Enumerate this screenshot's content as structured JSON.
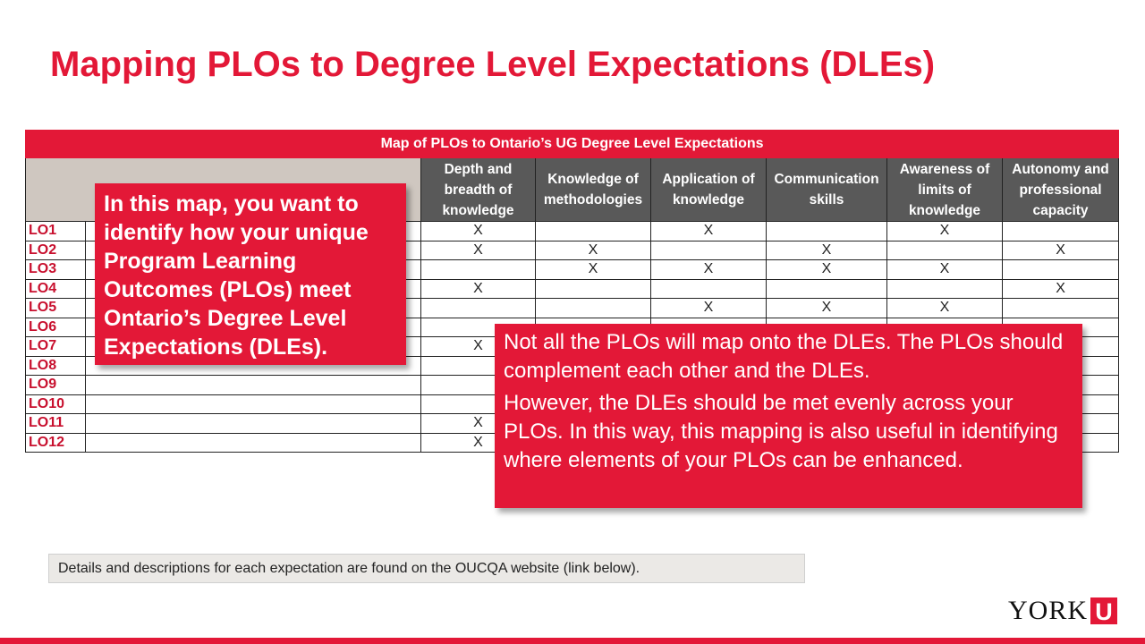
{
  "title": "Mapping PLOs to Degree Level Expectations (DLEs)",
  "table": {
    "banner": "Map of PLOs to Ontario’s UG Degree Level Expectations",
    "columns": [
      [
        "Depth and",
        "breadth of",
        "knowledge"
      ],
      [
        "Knowledge of",
        "methodologies"
      ],
      [
        "Application of",
        "knowledge"
      ],
      [
        "Communication",
        "skills"
      ],
      [
        "Awareness of",
        "limits of",
        "knowledge"
      ],
      [
        "Autonomy and",
        "professional",
        "capacity"
      ]
    ],
    "rows": [
      {
        "label": "LO1",
        "cells": [
          "X",
          "",
          "X",
          "",
          "X",
          ""
        ]
      },
      {
        "label": "LO2",
        "cells": [
          "X",
          "X",
          "",
          "X",
          "",
          "X"
        ]
      },
      {
        "label": "LO3",
        "cells": [
          "",
          "X",
          "X",
          "X",
          "X",
          ""
        ]
      },
      {
        "label": "LO4",
        "cells": [
          "X",
          "",
          "",
          "",
          "",
          "X"
        ]
      },
      {
        "label": "LO5",
        "cells": [
          "",
          "",
          "X",
          "X",
          "X",
          ""
        ]
      },
      {
        "label": "LO6",
        "cells": [
          "",
          "",
          "",
          "",
          "",
          ""
        ]
      },
      {
        "label": "LO7",
        "cells": [
          "X",
          "",
          "",
          "",
          "",
          ""
        ]
      },
      {
        "label": "LO8",
        "cells": [
          "",
          "",
          "",
          "",
          "",
          ""
        ]
      },
      {
        "label": "LO9",
        "cells": [
          "",
          "",
          "",
          "",
          "",
          ""
        ]
      },
      {
        "label": "LO10",
        "cells": [
          "",
          "",
          "",
          "",
          "",
          ""
        ]
      },
      {
        "label": "LO11",
        "cells": [
          "X",
          "",
          "",
          "",
          "",
          ""
        ]
      },
      {
        "label": "LO12",
        "cells": [
          "X",
          "",
          "",
          "",
          "",
          ""
        ]
      }
    ]
  },
  "callout_left": "In this map, you want to identify how your unique Program Learning Outcomes (PLOs) meet Ontario’s Degree Level Expectations (DLEs).",
  "callout_right": {
    "p1": "Not all the PLOs will map onto the DLEs. The PLOs should complement each other and the DLEs.",
    "p2": "However, the DLEs should be met evenly across your PLOs. In this way, this mapping is also useful in identifying where elements of your PLOs can be enhanced."
  },
  "note": "Details and descriptions for each expectation are found on the OUCQA website (link below).",
  "logo": {
    "text": "YORK",
    "mark": "U",
    "mark_icon": "york-u-logo-mark"
  },
  "colors": {
    "accent": "#e31837",
    "header_gray": "#595959",
    "header_beige": "#cfc7c0",
    "note_bg": "#ebe9e6"
  }
}
